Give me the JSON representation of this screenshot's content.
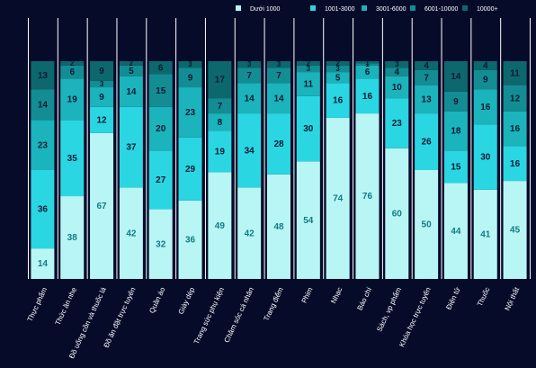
{
  "chart_data": {
    "type": "stacked_bar",
    "categories": [
      "Thực phẩm",
      "Thức ăn nhẹ",
      "Đồ uống cồn và thuốc lá",
      "Đồ ăn đặt trực tuyến",
      "Quần áo",
      "Giày dép",
      "Trang sức phụ kiện",
      "Chăm sóc cá nhân",
      "Trang điểm",
      "Phim",
      "Nhạc",
      "Báo chí",
      "Sách, vp phẩm",
      "Khóa học trực tuyến",
      "Điện tử",
      "Thuốc",
      "Nội thất"
    ],
    "series": [
      {
        "name": "Dưới 1000",
        "color": "#b8f6f6",
        "values": [
          14,
          38,
          67,
          42,
          32,
          36,
          49,
          42,
          48,
          54,
          74,
          76,
          60,
          50,
          44,
          41,
          45
        ]
      },
      {
        "name": "1001-3000",
        "color": "#2ad6e2",
        "values": [
          36,
          35,
          12,
          37,
          27,
          29,
          19,
          34,
          28,
          30,
          16,
          16,
          23,
          26,
          15,
          30,
          16
        ]
      },
      {
        "name": "3001-6000",
        "color": "#1bb3bc",
        "values": [
          23,
          19,
          9,
          14,
          20,
          23,
          8,
          14,
          14,
          11,
          5,
          6,
          10,
          13,
          18,
          16,
          16
        ]
      },
      {
        "name": "6001-10000",
        "color": "#138d93",
        "values": [
          14,
          6,
          3,
          5,
          15,
          9,
          7,
          7,
          7,
          3,
          3,
          1,
          4,
          7,
          9,
          9,
          12
        ]
      },
      {
        "name": "10000+",
        "color": "#0d686d",
        "values": [
          13,
          2,
          9,
          2,
          6,
          3,
          17,
          3,
          3,
          2,
          2,
          1,
          3,
          4,
          14,
          4,
          11
        ]
      }
    ],
    "ylim": [
      0,
      100
    ],
    "legend": "top-right"
  }
}
